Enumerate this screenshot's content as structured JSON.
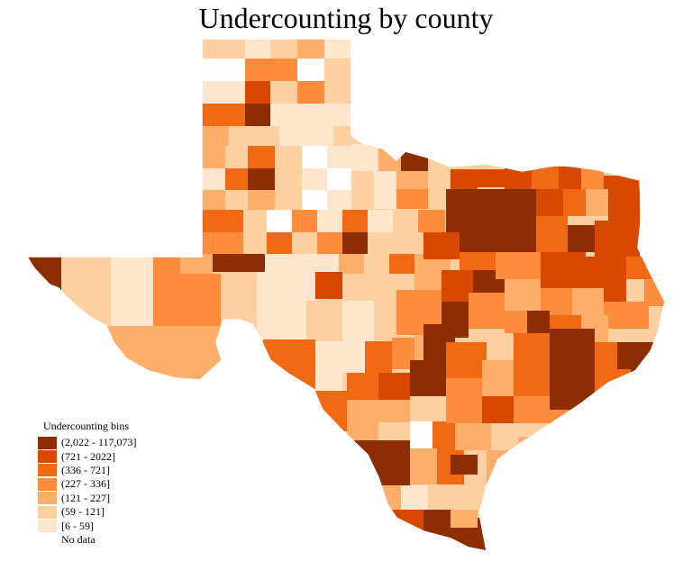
{
  "title": "Undercounting by county",
  "legend": {
    "title": "Undercounting bins",
    "items": [
      {
        "label": "(2,022 - 117,073]",
        "color": "#8c2d04"
      },
      {
        "label": "(721 - 2022]",
        "color": "#d94801"
      },
      {
        "label": "(336 - 721]",
        "color": "#f16913"
      },
      {
        "label": "(227 - 336]",
        "color": "#fd8d3c"
      },
      {
        "label": "(121 - 227]",
        "color": "#fdae6b"
      },
      {
        "label": "(59 - 121]",
        "color": "#fdd0a2"
      },
      {
        "label": "[6 - 59]",
        "color": "#fee6ce"
      },
      {
        "label": "No data",
        "color": "#ffffff"
      }
    ]
  }
}
